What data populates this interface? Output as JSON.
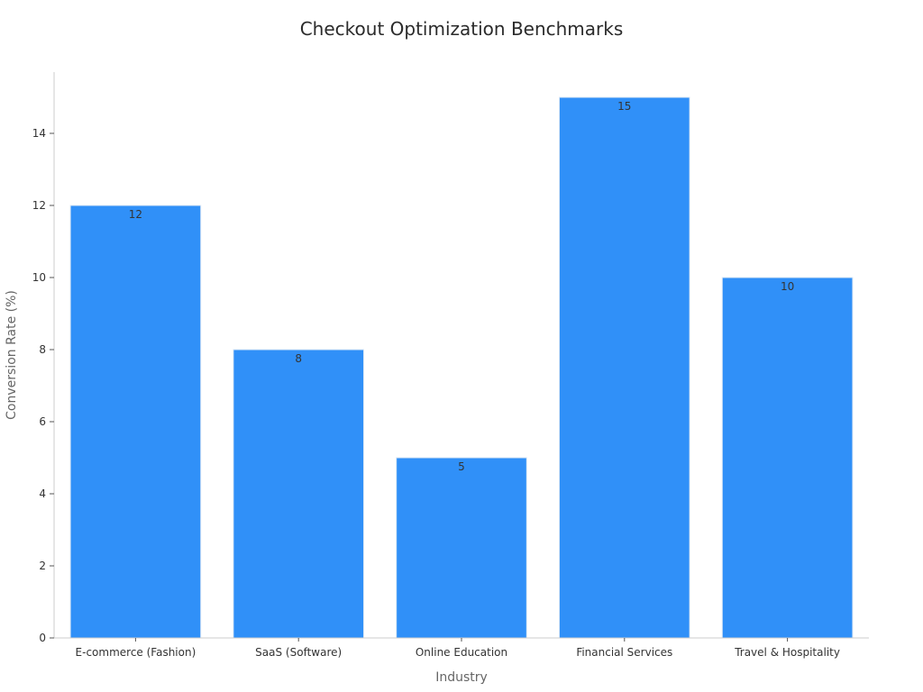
{
  "chart_data": {
    "type": "bar",
    "title": "Checkout Optimization Benchmarks",
    "xlabel": "Industry",
    "ylabel": "Conversion Rate (%)",
    "categories": [
      "E-commerce (Fashion)",
      "SaaS (Software)",
      "Online Education",
      "Financial Services",
      "Travel & Hospitality"
    ],
    "values": [
      12,
      8,
      5,
      15,
      10
    ],
    "data_labels": [
      "12",
      "8",
      "5",
      "15",
      "10"
    ],
    "ylim": [
      0,
      15.7
    ],
    "yticks": [
      0,
      2,
      4,
      6,
      8,
      10,
      12,
      14
    ],
    "ytick_labels": [
      "0",
      "2",
      "4",
      "6",
      "8",
      "10",
      "12",
      "14"
    ],
    "grid": false,
    "legend": "none",
    "colors": {
      "bar": "#3090f8",
      "bar_edge": "#dce8f5",
      "axis": "#cccccc",
      "tick_text": "#333333",
      "title_text": "#2b2b2b",
      "axis_title_text": "#666666"
    }
  }
}
